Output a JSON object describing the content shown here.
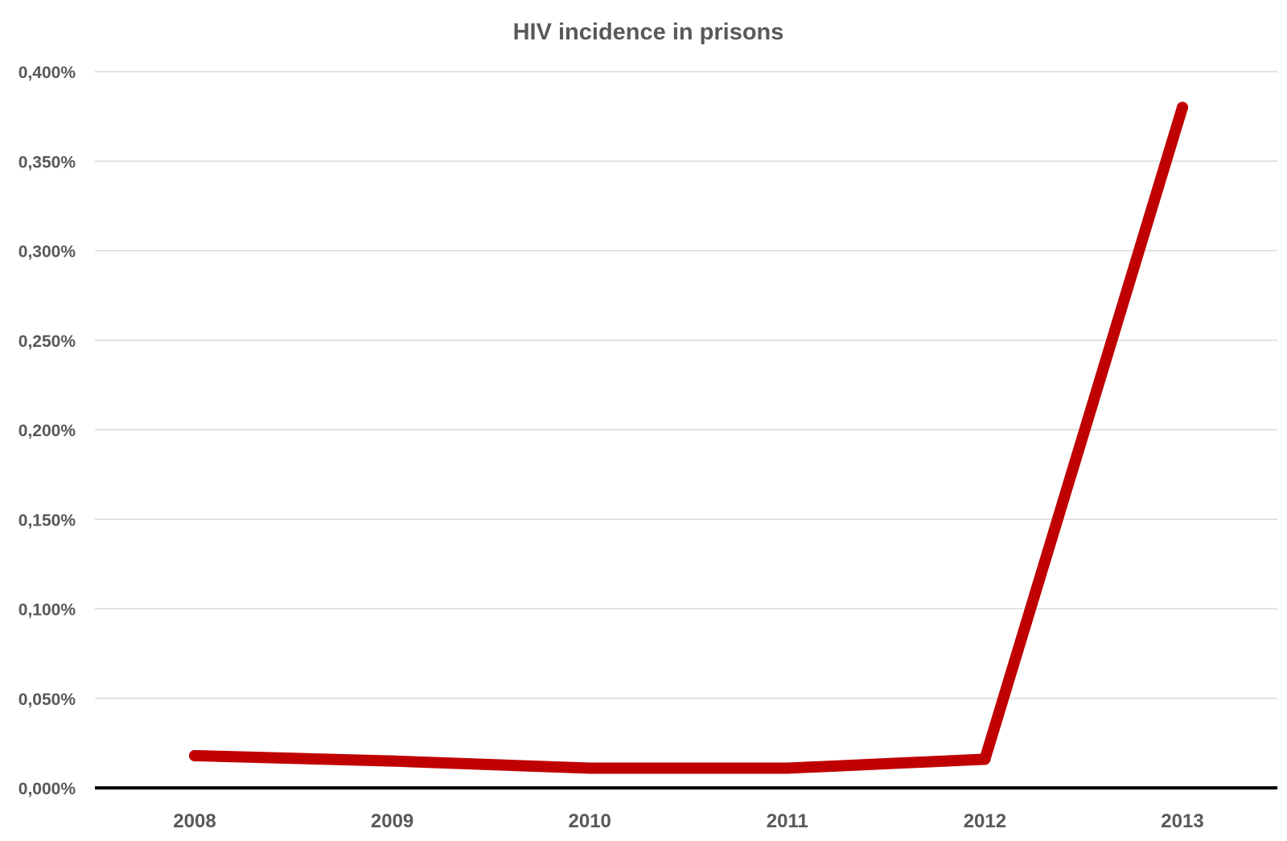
{
  "chart_data": {
    "type": "line",
    "title": "HIV incidence in prisons",
    "xlabel": "",
    "ylabel": "",
    "categories": [
      "2008",
      "2009",
      "2010",
      "2011",
      "2012",
      "2013"
    ],
    "series": [
      {
        "values": [
          0.018,
          0.015,
          0.011,
          0.011,
          0.016,
          0.38
        ],
        "color": "#c00000"
      }
    ],
    "ylim": [
      0,
      0.4
    ],
    "yticks": [
      0,
      0.05,
      0.1,
      0.15,
      0.2,
      0.25,
      0.3,
      0.35,
      0.4
    ],
    "ytick_labels": [
      "0,000%",
      "0,050%",
      "0,100%",
      "0,150%",
      "0,200%",
      "0,250%",
      "0,300%",
      "0,350%",
      "0,400%"
    ],
    "value_unit": "%",
    "grid": true,
    "legend": "none",
    "colors": {
      "title": "#595959",
      "ticks": "#595959",
      "grid": "#d9d9d9",
      "axis": "#000000"
    }
  }
}
